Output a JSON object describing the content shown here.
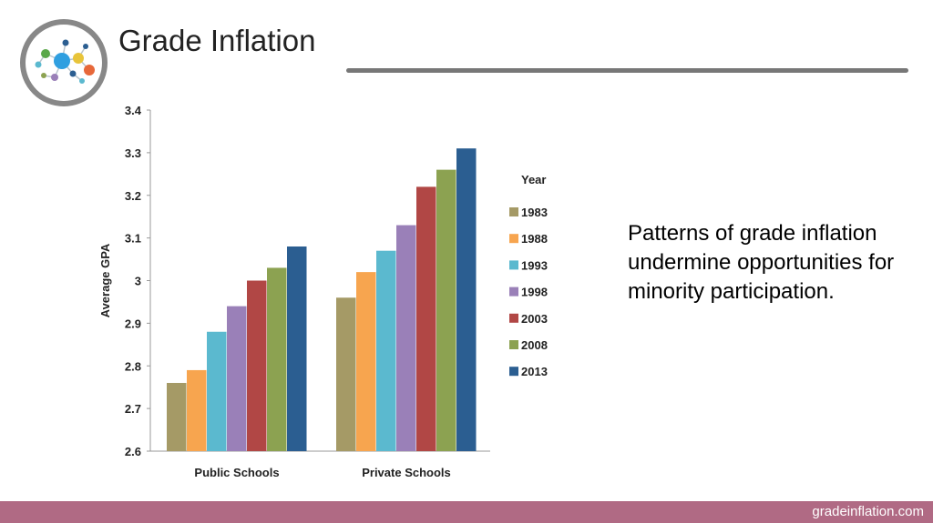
{
  "slide": {
    "title": "Grade Inflation",
    "text": "Patterns of grade inflation undermine opportunities for minority participation.",
    "footer": "gradeinflation.com"
  },
  "colors": {
    "footer_bar": "#b06a84",
    "title_rule": "#777777",
    "logo_ring": "#888888"
  },
  "logo": {
    "icon": "molecule-network-icon"
  },
  "chart_data": {
    "type": "bar",
    "title": "",
    "xlabel": "",
    "ylabel": "Average GPA",
    "ylim": [
      2.6,
      3.4
    ],
    "yticks": [
      2.6,
      2.7,
      2.8,
      2.9,
      3.0,
      3.1,
      3.2,
      3.3,
      3.4
    ],
    "ytick_labels": [
      "2.6",
      "2.7",
      "2.8",
      "2.9",
      "3",
      "3.1",
      "3.2",
      "3.3",
      "3.4"
    ],
    "categories": [
      "Public Schools",
      "Private Schools"
    ],
    "legend_title": "Year",
    "legend_position": "right",
    "grid": false,
    "series": [
      {
        "name": "1983",
        "color": "#a59a66",
        "values": [
          2.76,
          2.96
        ]
      },
      {
        "name": "1988",
        "color": "#f7a54f",
        "values": [
          2.79,
          3.02
        ]
      },
      {
        "name": "1993",
        "color": "#5bb9cf",
        "values": [
          2.88,
          3.07
        ]
      },
      {
        "name": "1998",
        "color": "#9a80b8",
        "values": [
          2.94,
          3.13
        ]
      },
      {
        "name": "2003",
        "color": "#b14745",
        "values": [
          3.0,
          3.22
        ]
      },
      {
        "name": "2008",
        "color": "#8ca251",
        "values": [
          3.03,
          3.26
        ]
      },
      {
        "name": "2013",
        "color": "#2b5e91",
        "values": [
          3.08,
          3.31
        ]
      }
    ]
  }
}
